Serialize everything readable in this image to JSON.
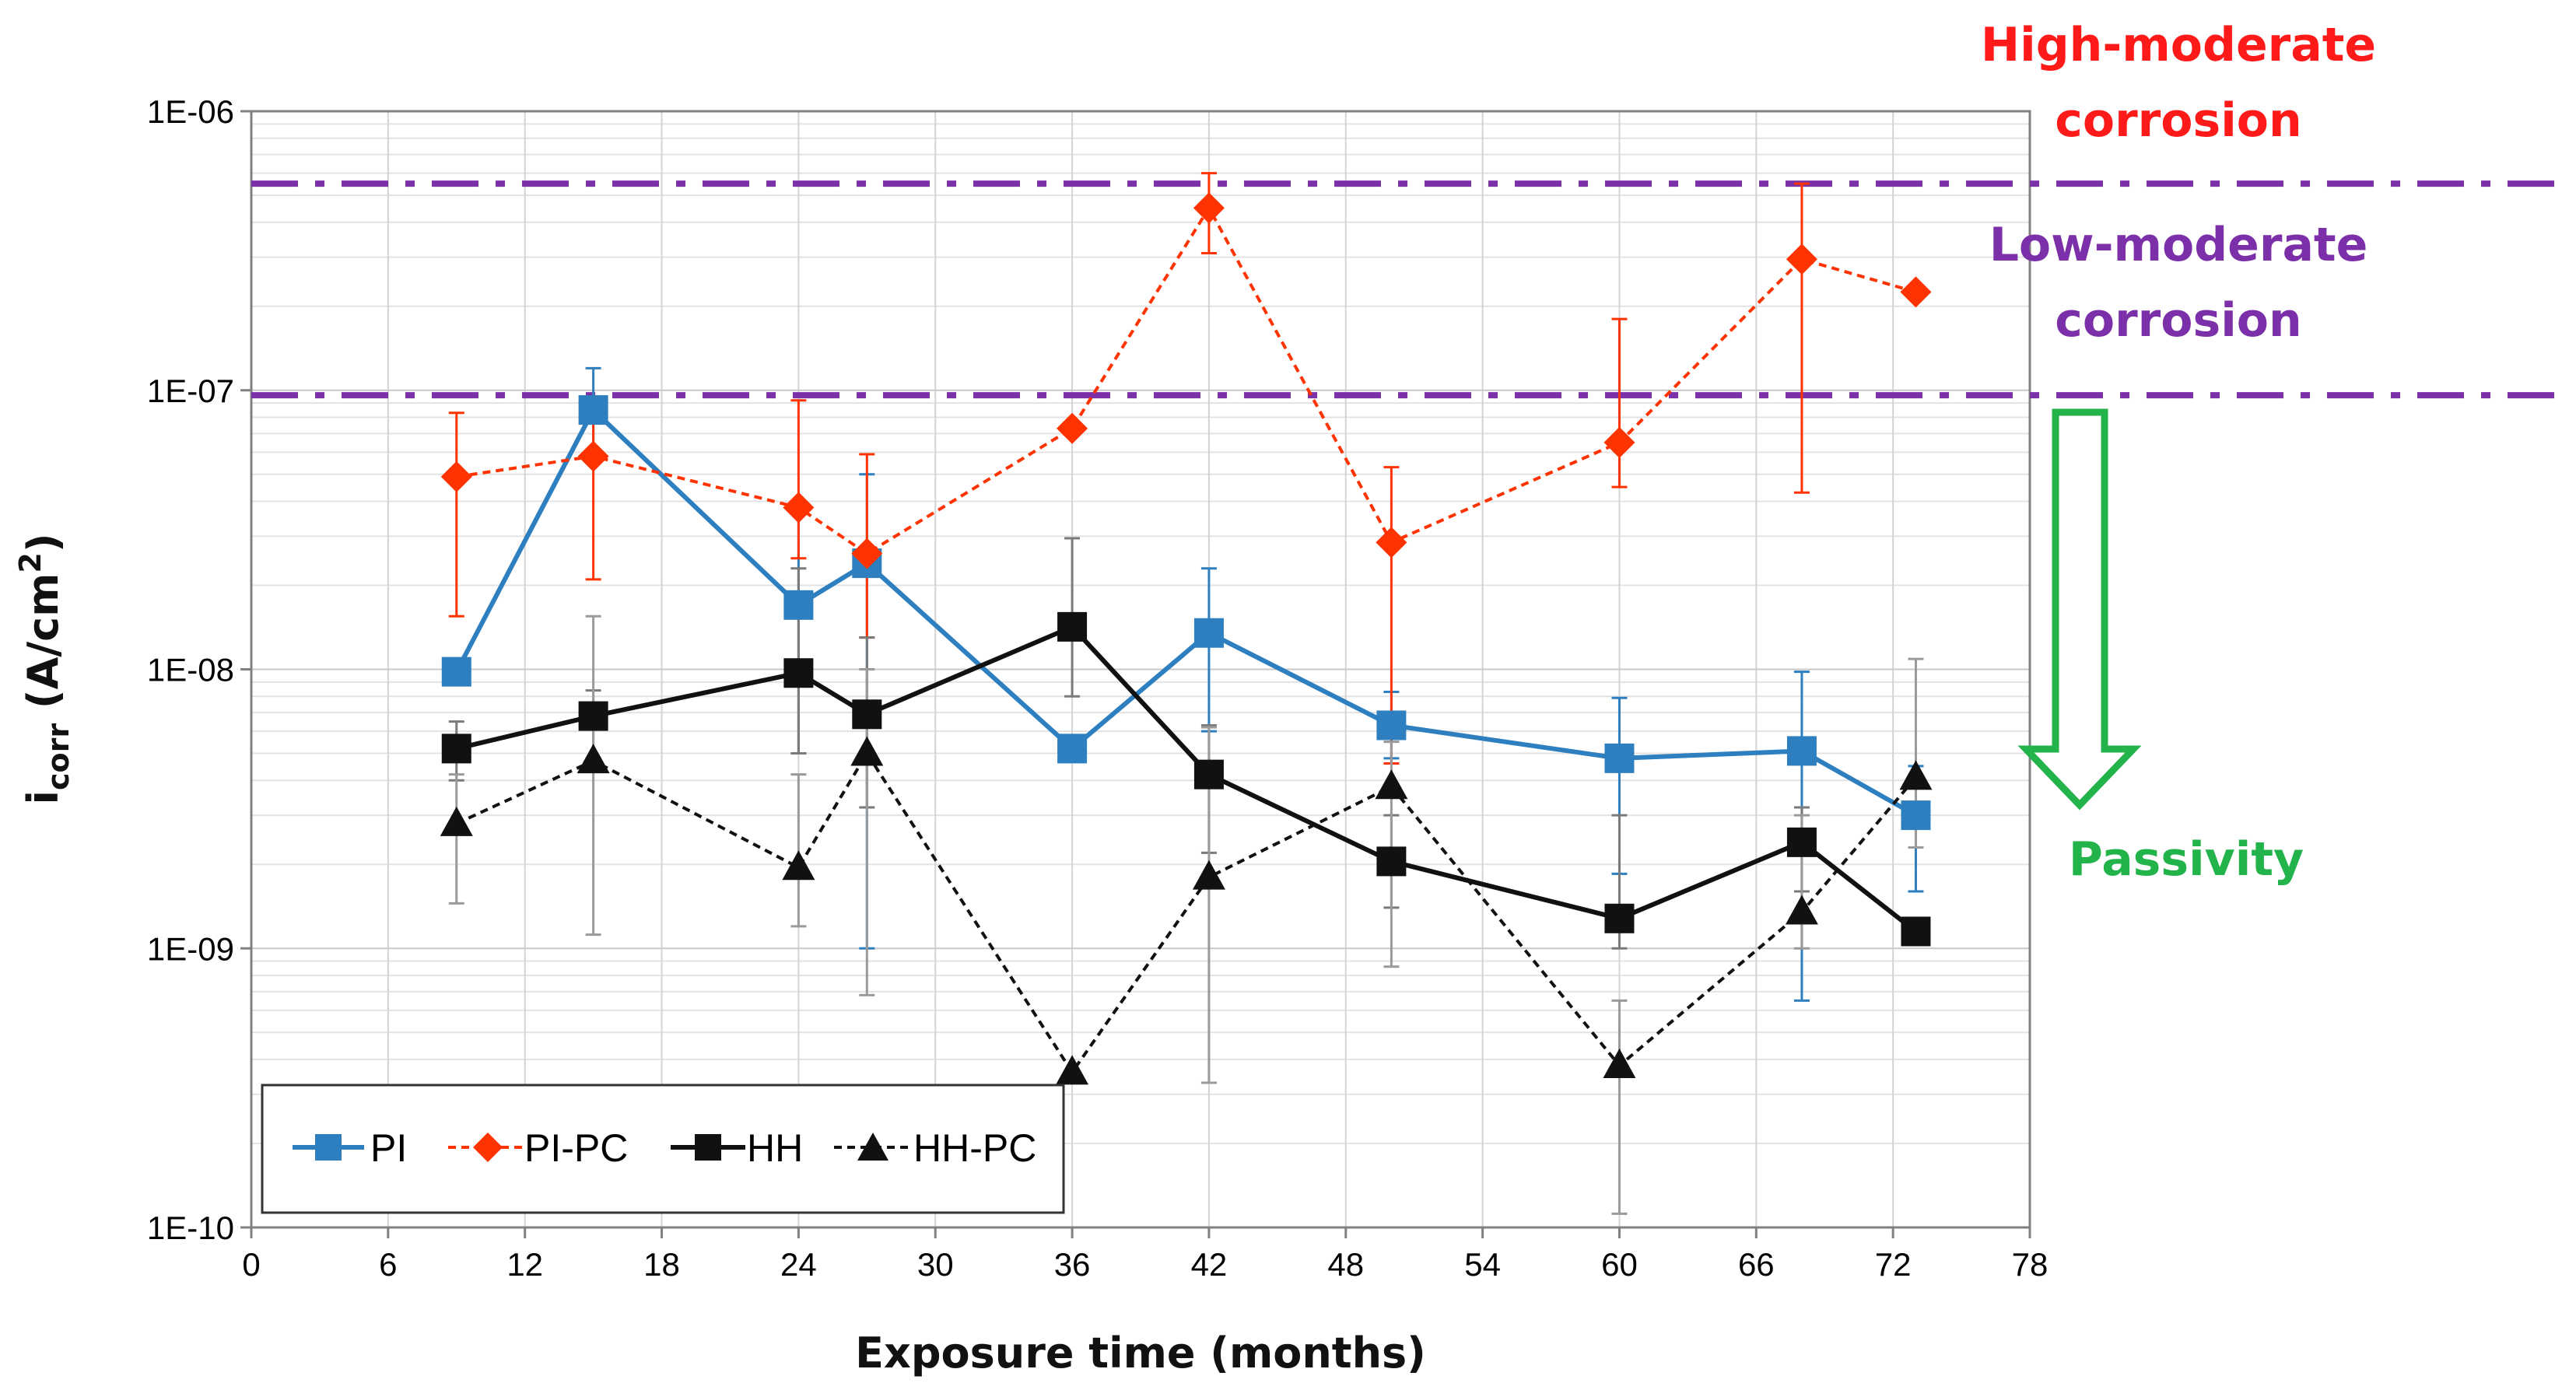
{
  "chart_data": {
    "type": "line",
    "xlabel": "Exposure time (months)",
    "ylabel": {
      "main": "i",
      "sub": "corr",
      "rest_prefix": " (A/cm",
      "sup": "2",
      "rest_suffix": ")"
    },
    "x_ticks": [
      0,
      6,
      12,
      18,
      24,
      30,
      36,
      42,
      48,
      54,
      60,
      66,
      72,
      78
    ],
    "x_tick_labels": [
      "0",
      "6",
      "12",
      "18",
      "24",
      "30",
      "36",
      "42",
      "48",
      "54",
      "60",
      "66",
      "72",
      "78"
    ],
    "xlim": [
      0,
      78
    ],
    "y_scale": "log",
    "ylim": [
      1e-10,
      1e-06
    ],
    "y_ticks": [
      1e-10,
      1e-09,
      1e-08,
      1e-07,
      1e-06
    ],
    "y_tick_labels": [
      "1E-10",
      "1E-09",
      "1E-08",
      "1E-07",
      "1E-06"
    ],
    "grid": true,
    "legend_position": "bottom-left",
    "series": [
      {
        "name": "PI",
        "color": "#2E7FBF",
        "line_style": "solid",
        "marker": "square",
        "x": [
          9,
          15,
          24,
          27,
          36,
          42,
          50,
          60,
          68,
          73
        ],
        "y": [
          9.8e-09,
          8.5e-08,
          1.7e-08,
          2.4e-08,
          5.2e-09,
          1.35e-08,
          6.3e-09,
          4.8e-09,
          5.1e-09,
          3e-09
        ],
        "err_low": [
          null,
          6e-08,
          5e-09,
          1e-09,
          null,
          6e-09,
          4.8e-09,
          1.85e-09,
          6.5e-10,
          1.6e-09
        ],
        "err_high": [
          null,
          1.2e-07,
          3.8e-08,
          5e-08,
          null,
          2.3e-08,
          8.3e-09,
          7.9e-09,
          9.8e-09,
          4.5e-09
        ]
      },
      {
        "name": "PI-PC",
        "color": "#FF3300",
        "line_style": "dashed",
        "marker": "diamond",
        "x": [
          9,
          15,
          24,
          27,
          36,
          42,
          50,
          60,
          68,
          73
        ],
        "y": [
          4.9e-08,
          5.8e-08,
          3.8e-08,
          2.6e-08,
          7.3e-08,
          4.5e-07,
          2.85e-08,
          6.5e-08,
          2.95e-07,
          2.25e-07
        ],
        "err_low": [
          1.55e-08,
          2.1e-08,
          2.5e-08,
          1.3e-08,
          null,
          3.1e-07,
          4.6e-09,
          4.5e-08,
          4.3e-08,
          null
        ],
        "err_high": [
          8.3e-08,
          9.5e-08,
          9.2e-08,
          5.9e-08,
          null,
          6e-07,
          5.3e-08,
          1.8e-07,
          5.5e-07,
          null
        ]
      },
      {
        "name": "HH",
        "color": "#111111",
        "line_style": "solid",
        "marker": "square",
        "x": [
          9,
          15,
          24,
          27,
          36,
          42,
          50,
          60,
          68,
          73
        ],
        "y": [
          5.2e-09,
          6.8e-09,
          9.7e-09,
          6.9e-09,
          1.42e-08,
          4.2e-09,
          2.05e-09,
          1.28e-09,
          2.4e-09,
          1.15e-09
        ],
        "err_low": [
          4e-09,
          4.8e-09,
          5e-09,
          3.2e-09,
          8e-09,
          2.2e-09,
          1.4e-09,
          1e-09,
          1.6e-09,
          null
        ],
        "err_high": [
          6.5e-09,
          8.4e-09,
          2.3e-08,
          1.3e-08,
          2.95e-08,
          6.3e-09,
          3e-09,
          3e-09,
          3.2e-09,
          null
        ]
      },
      {
        "name": "HH-PC",
        "color": "#111111",
        "line_style": "dashed",
        "marker": "triangle",
        "x": [
          9,
          15,
          24,
          27,
          36,
          42,
          50,
          60,
          68,
          73
        ],
        "y": [
          2.8e-09,
          4.7e-09,
          1.95e-09,
          5e-09,
          3.6e-10,
          1.8e-09,
          3.8e-09,
          3.8e-10,
          1.35e-09,
          4.1e-09
        ],
        "err_low": [
          1.45e-09,
          1.12e-09,
          1.2e-09,
          6.8e-10,
          null,
          3.3e-10,
          8.6e-10,
          1.12e-10,
          1e-09,
          2.3e-09
        ],
        "err_high": [
          4.2e-09,
          1.55e-08,
          4.2e-09,
          1e-08,
          null,
          6.2e-09,
          5.5e-09,
          6.5e-10,
          3e-09,
          1.09e-08
        ]
      }
    ],
    "thresholds": [
      {
        "value": 5.5e-07,
        "color": "#7B2FA8",
        "style": "dash-dot"
      },
      {
        "value": 9.6e-08,
        "color": "#7B2FA8",
        "style": "dash-dot"
      }
    ],
    "annotations": [
      {
        "id": "high",
        "lines": [
          "High-moderate",
          "corrosion"
        ],
        "color": "#FF1A1A"
      },
      {
        "id": "low",
        "lines": [
          "Low-moderate",
          "corrosion"
        ],
        "color": "#7B2FA8"
      },
      {
        "id": "passivity",
        "lines": [
          "Passivity"
        ],
        "color": "#22B34B"
      }
    ]
  }
}
